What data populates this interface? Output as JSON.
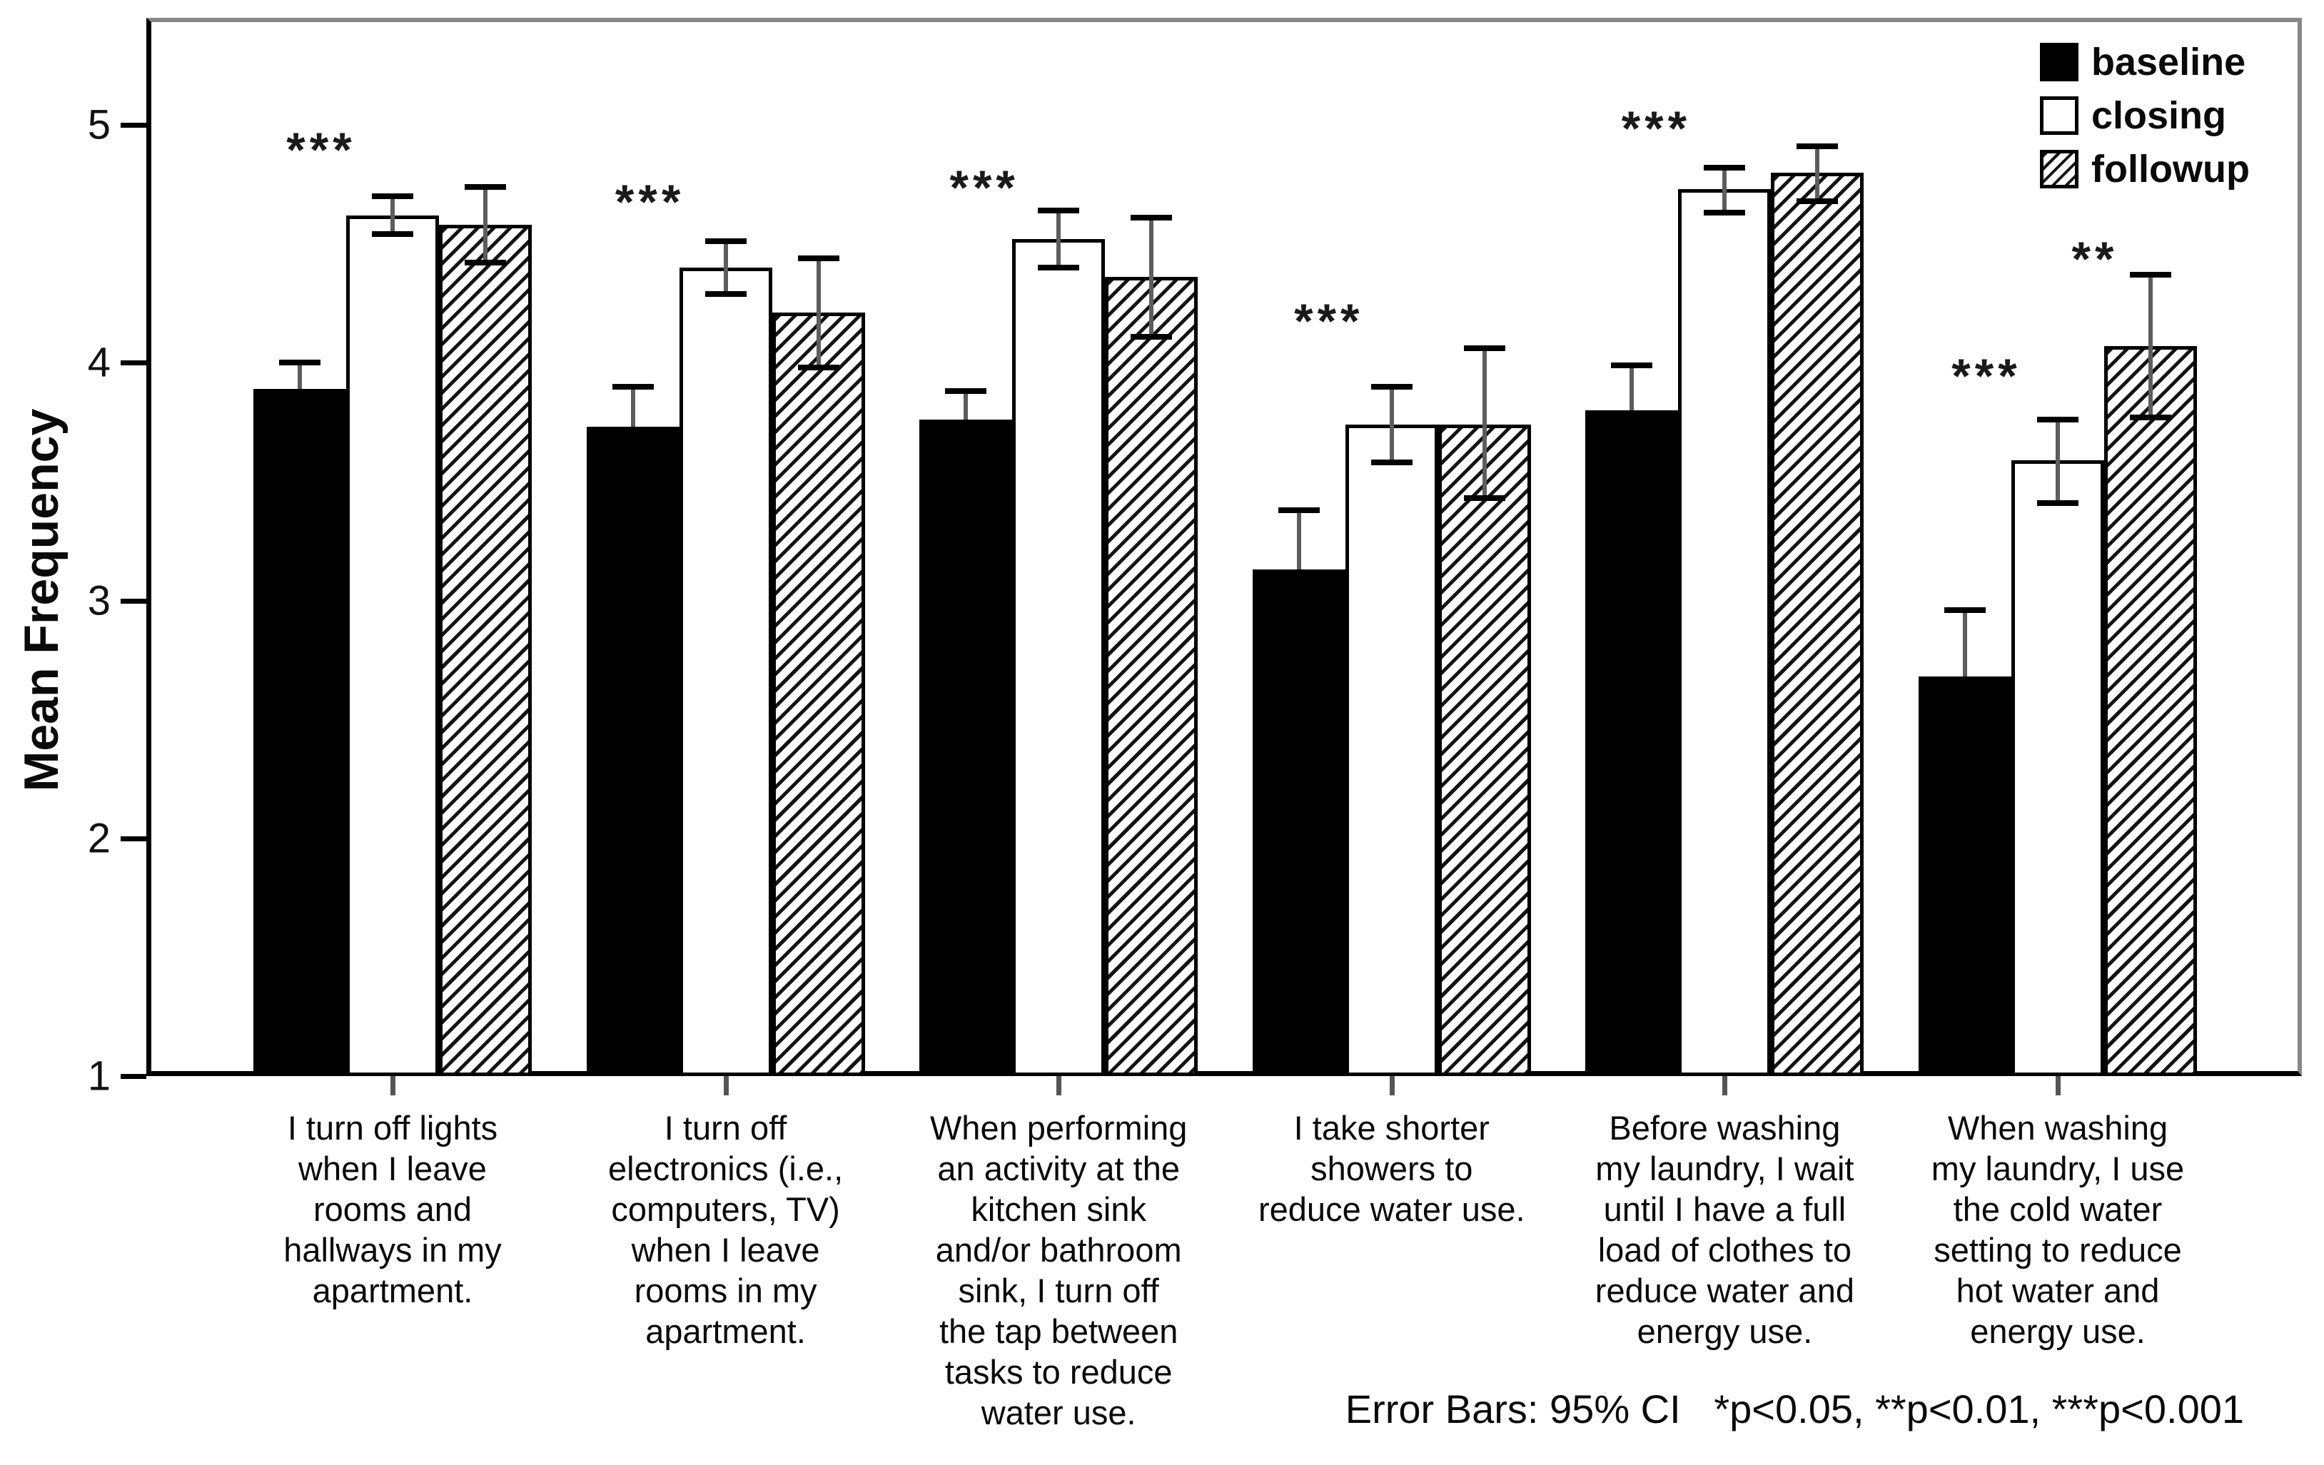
{
  "chart_data": {
    "type": "bar",
    "title": "",
    "ylabel": "Mean Frequency",
    "xlabel": "",
    "ylim": [
      1,
      5.45
    ],
    "yticks": [
      1,
      2,
      3,
      4,
      5
    ],
    "grid": false,
    "legend_position": "inside top-right",
    "error_bars": "95% CI",
    "categories": [
      "I turn off lights\nwhen I leave\nrooms and\nhallways in my\napartment.",
      "I turn off\nelectronics (i.e.,\ncomputers, TV)\nwhen I leave\nrooms in my\napartment.",
      "When performing\nan activity at the\nkitchen sink\nand/or bathroom\nsink, I turn off\nthe tap between\ntasks to reduce\nwater use.",
      "I take shorter\nshowers to\nreduce water use.",
      "Before washing\nmy laundry, I wait\nuntil I have a full\nload of clothes to\nreduce water and\nenergy use.",
      "When washing\nmy laundry, I use\nthe cold water\nsetting to reduce\nhot water and\nenergy use."
    ],
    "series": [
      {
        "name": "baseline",
        "pattern": "solid-black",
        "values": [
          3.89,
          3.73,
          3.76,
          3.13,
          3.8,
          2.68
        ],
        "ci_low": [
          3.78,
          3.56,
          3.64,
          2.88,
          3.61,
          2.4
        ],
        "ci_high": [
          4.0,
          3.9,
          3.88,
          3.38,
          3.99,
          2.96
        ]
      },
      {
        "name": "closing",
        "pattern": "white",
        "values": [
          4.62,
          4.4,
          4.52,
          3.74,
          4.73,
          3.59
        ],
        "ci_low": [
          4.54,
          4.29,
          4.4,
          3.58,
          4.63,
          3.41
        ],
        "ci_high": [
          4.7,
          4.51,
          4.64,
          3.9,
          4.82,
          3.76
        ]
      },
      {
        "name": "followup",
        "pattern": "diagonal-hatch",
        "values": [
          4.58,
          4.21,
          4.36,
          3.74,
          4.8,
          4.07
        ],
        "ci_low": [
          4.42,
          3.98,
          4.11,
          3.43,
          4.68,
          3.77
        ],
        "ci_high": [
          4.74,
          4.44,
          4.61,
          4.06,
          4.91,
          4.37
        ]
      }
    ],
    "annotations": [
      {
        "text": "***",
        "group": 0,
        "dx": -100,
        "value": 4.88
      },
      {
        "text": "***",
        "group": 1,
        "dx": -106,
        "value": 4.66
      },
      {
        "text": "***",
        "group": 2,
        "dx": -104,
        "value": 4.72
      },
      {
        "text": "***",
        "group": 3,
        "dx": -88,
        "value": 4.16
      },
      {
        "text": "***",
        "group": 4,
        "dx": -96,
        "value": 4.97
      },
      {
        "text": "***",
        "group": 5,
        "dx": -100,
        "value": 3.93
      },
      {
        "text": "**",
        "group": 5,
        "dx": 52,
        "value": 4.42
      }
    ],
    "footnote": "Error Bars: 95% CI   *p<0.05, **p<0.01, ***p<0.001"
  }
}
